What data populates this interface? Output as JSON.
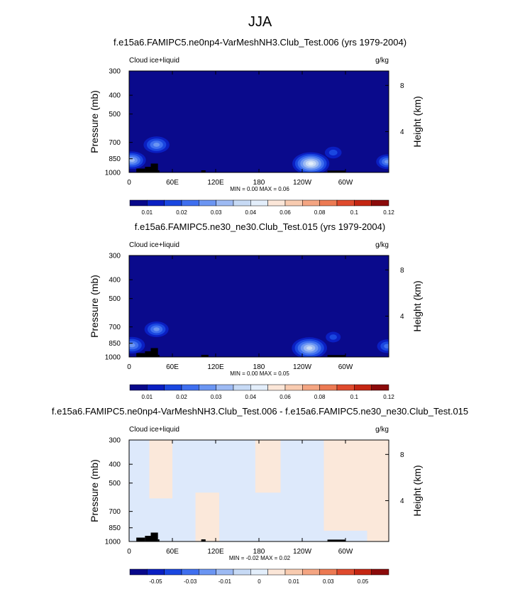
{
  "figure_title": "JJA",
  "chart_data": [
    {
      "type": "heatmap",
      "title": "f.e15a6.FAMIPC5.ne0np4-VarMeshNH3.Club_Test.006 (yrs 1979-2004)",
      "left_label": "Cloud ice+liquid",
      "right_label": "g/kg",
      "ylabel": "Pressure (mb)",
      "y2label": "Height (km)",
      "x_ticks": [
        "0",
        "60E",
        "120E",
        "180",
        "120W",
        "60W"
      ],
      "x_tick_degrees": [
        0,
        60,
        120,
        180,
        240,
        300
      ],
      "xlim": [
        0,
        360
      ],
      "y_ticks": [
        300,
        400,
        500,
        700,
        850,
        1000
      ],
      "ylim": [
        1000,
        300
      ],
      "y2_ticks": [
        8,
        4
      ],
      "stats_text": "MIN =  0.00  MAX =  0.06",
      "min": 0.0,
      "max": 0.06,
      "colorbar": {
        "labels": [
          "0.01",
          "0.02",
          "0.03",
          "0.04",
          "0.06",
          "0.08",
          "0.1",
          "0.12"
        ],
        "colors": [
          "#08088a",
          "#0a1fc2",
          "#1a47e0",
          "#3f6fef",
          "#6b95f2",
          "#9dbaf3",
          "#c7daf5",
          "#e3eefb",
          "#fbe6d8",
          "#f8cbb0",
          "#f4a582",
          "#ec7a53",
          "#df4a2d",
          "#c42612",
          "#8b0a0a"
        ]
      },
      "background_color": "#0a0a8c",
      "features": [
        {
          "lon": 38,
          "p": 720,
          "strength": 0.55
        },
        {
          "lon": 4,
          "p": 865,
          "strength": 0.6
        },
        {
          "lon": 252,
          "p": 900,
          "strength": 0.85
        },
        {
          "lon": 283,
          "p": 790,
          "strength": 0.3
        },
        {
          "lon": 358,
          "p": 880,
          "strength": 0.45
        }
      ],
      "terrain": [
        {
          "lon0": 10,
          "lon1": 22,
          "p": 955
        },
        {
          "lon0": 22,
          "lon1": 30,
          "p": 935
        },
        {
          "lon0": 30,
          "lon1": 40,
          "p": 900
        },
        {
          "lon0": 40,
          "lon1": 42,
          "p": 975
        },
        {
          "lon0": 100,
          "lon1": 106,
          "p": 975
        },
        {
          "lon0": 275,
          "lon1": 300,
          "p": 978
        }
      ]
    },
    {
      "type": "heatmap",
      "title": "f.e15a6.FAMIPC5.ne30_ne30.Club_Test.015 (yrs 1979-2004)",
      "left_label": "Cloud ice+liquid",
      "right_label": "g/kg",
      "ylabel": "Pressure (mb)",
      "y2label": "Height (km)",
      "x_ticks": [
        "0",
        "60E",
        "120E",
        "180",
        "120W",
        "60W"
      ],
      "x_tick_degrees": [
        0,
        60,
        120,
        180,
        240,
        300
      ],
      "xlim": [
        0,
        360
      ],
      "y_ticks": [
        300,
        400,
        500,
        700,
        850,
        1000
      ],
      "ylim": [
        1000,
        300
      ],
      "y2_ticks": [
        8,
        4
      ],
      "stats_text": "MIN =  0.00  MAX =  0.05",
      "min": 0.0,
      "max": 0.05,
      "colorbar": {
        "labels": [
          "0.01",
          "0.02",
          "0.03",
          "0.04",
          "0.06",
          "0.08",
          "0.1",
          "0.12"
        ],
        "colors": [
          "#08088a",
          "#0a1fc2",
          "#1a47e0",
          "#3f6fef",
          "#6b95f2",
          "#9dbaf3",
          "#c7daf5",
          "#e3eefb",
          "#fbe6d8",
          "#f8cbb0",
          "#f4a582",
          "#ec7a53",
          "#df4a2d",
          "#c42612",
          "#8b0a0a"
        ]
      },
      "background_color": "#0a0a8c",
      "features": [
        {
          "lon": 38,
          "p": 720,
          "strength": 0.5
        },
        {
          "lon": 4,
          "p": 870,
          "strength": 0.55
        },
        {
          "lon": 250,
          "p": 900,
          "strength": 0.8
        },
        {
          "lon": 283,
          "p": 790,
          "strength": 0.25
        },
        {
          "lon": 358,
          "p": 880,
          "strength": 0.4
        }
      ],
      "terrain": [
        {
          "lon0": 10,
          "lon1": 22,
          "p": 955
        },
        {
          "lon0": 22,
          "lon1": 30,
          "p": 935
        },
        {
          "lon0": 30,
          "lon1": 40,
          "p": 900
        },
        {
          "lon0": 40,
          "lon1": 42,
          "p": 975
        },
        {
          "lon0": 100,
          "lon1": 110,
          "p": 975
        },
        {
          "lon0": 275,
          "lon1": 300,
          "p": 978
        }
      ]
    },
    {
      "type": "heatmap",
      "title": "f.e15a6.FAMIPC5.ne0np4-VarMeshNH3.Club_Test.006 - f.e15a6.FAMIPC5.ne30_ne30.Club_Test.015",
      "left_label": "Cloud ice+liquid",
      "right_label": "g/kg",
      "ylabel": "Pressure (mb)",
      "y2label": "Height (km)",
      "x_ticks": [
        "0",
        "60E",
        "120E",
        "180",
        "120W",
        "60W"
      ],
      "x_tick_degrees": [
        0,
        60,
        120,
        180,
        240,
        300
      ],
      "xlim": [
        0,
        360
      ],
      "y_ticks": [
        300,
        400,
        500,
        700,
        850,
        1000
      ],
      "ylim": [
        1000,
        300
      ],
      "y2_ticks": [
        8,
        4
      ],
      "stats_text": "MIN = -0.02  MAX =  0.02",
      "min": -0.02,
      "max": 0.02,
      "colorbar": {
        "labels": [
          "-0.05",
          "-0.03",
          "-0.01",
          "0",
          "0.01",
          "0.03",
          "0.05"
        ],
        "colors": [
          "#08088a",
          "#0a1fc2",
          "#1a47e0",
          "#3f6fef",
          "#6b95f2",
          "#9dbaf3",
          "#c7daf5",
          "#e3eefb",
          "#fbe6d8",
          "#f8cbb0",
          "#f4a582",
          "#ec7a53",
          "#df4a2d",
          "#c42612",
          "#8b0a0a"
        ]
      },
      "diff_colors": {
        "negative": "#dde9fb",
        "positive": "#fbe8da"
      },
      "diff_regions": [
        {
          "lon0": 0,
          "lon1": 28,
          "p0": 300,
          "p1": 1000,
          "sign": "negative"
        },
        {
          "lon0": 28,
          "lon1": 60,
          "p0": 300,
          "p1": 600,
          "sign": "positive"
        },
        {
          "lon0": 60,
          "lon1": 92,
          "p0": 300,
          "p1": 1000,
          "sign": "negative"
        },
        {
          "lon0": 92,
          "lon1": 125,
          "p0": 560,
          "p1": 1000,
          "sign": "positive"
        },
        {
          "lon0": 125,
          "lon1": 175,
          "p0": 300,
          "p1": 700,
          "sign": "negative"
        },
        {
          "lon0": 175,
          "lon1": 210,
          "p0": 300,
          "p1": 560,
          "sign": "positive"
        },
        {
          "lon0": 210,
          "lon1": 270,
          "p0": 300,
          "p1": 1000,
          "sign": "negative"
        },
        {
          "lon0": 270,
          "lon1": 330,
          "p0": 300,
          "p1": 880,
          "sign": "positive"
        },
        {
          "lon0": 330,
          "lon1": 360,
          "p0": 300,
          "p1": 1000,
          "sign": "positive"
        }
      ],
      "terrain": [
        {
          "lon0": 10,
          "lon1": 22,
          "p": 955
        },
        {
          "lon0": 22,
          "lon1": 30,
          "p": 935
        },
        {
          "lon0": 30,
          "lon1": 40,
          "p": 900
        },
        {
          "lon0": 40,
          "lon1": 42,
          "p": 975
        },
        {
          "lon0": 100,
          "lon1": 106,
          "p": 975
        },
        {
          "lon0": 275,
          "lon1": 300,
          "p": 978
        }
      ]
    }
  ]
}
